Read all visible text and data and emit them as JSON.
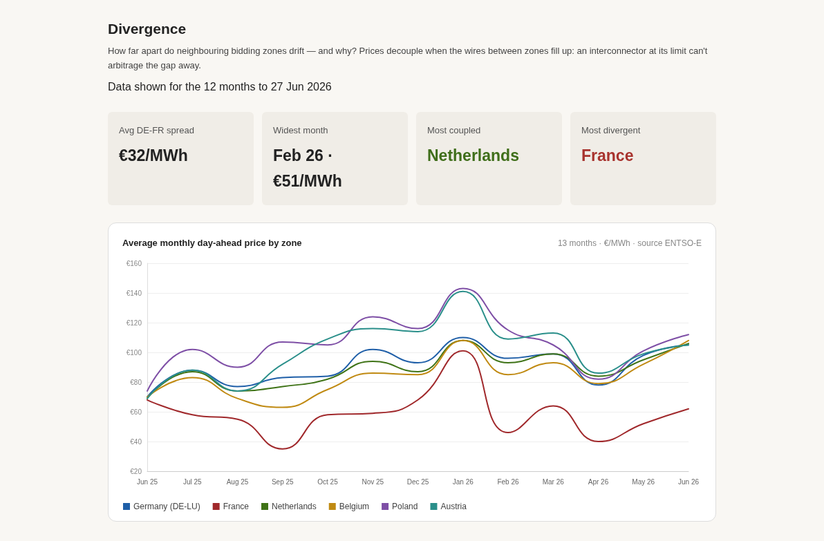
{
  "chart_data": {
    "type": "line",
    "title": "Average monthly day-ahead price by zone",
    "subtitle": "13 months · €/MWh · source ENTSO-E",
    "annotations": [
      "Divergence",
      "How far apart do neighbouring bidding zones drift — and why? Prices decouple when the wires between zones fill up: an interconnector at its limit can't arbitrage the gap away.",
      "Data shown for the 12 months to 27 Jun 2026",
      "Avg DE-FR spread",
      "€32/MWh",
      "Widest month",
      "Feb 26 · €51/MWh",
      "Most coupled",
      "Netherlands",
      "Most divergent",
      "France"
    ],
    "categories": [
      "Jun 25",
      "Jul 25",
      "Aug 25",
      "Sep 25",
      "Oct 25",
      "Nov 25",
      "Dec 25",
      "Jan 26",
      "Feb 26",
      "Mar 26",
      "Apr 26",
      "May 26",
      "Jun 26"
    ],
    "series": [
      {
        "name": "Germany (DE-LU)",
        "color": "#1f5fa8",
        "values": [
          70,
          88,
          77,
          83,
          84,
          102,
          93,
          110,
          96,
          99,
          78,
          98,
          105
        ]
      },
      {
        "name": "France",
        "color": "#a0282b",
        "values": [
          68,
          58,
          55,
          35,
          58,
          59,
          68,
          101,
          46,
          64,
          40,
          52,
          62
        ]
      },
      {
        "name": "Netherlands",
        "color": "#3f7317",
        "values": [
          69,
          87,
          74,
          77,
          82,
          94,
          87,
          108,
          93,
          99,
          84,
          95,
          106
        ]
      },
      {
        "name": "Belgium",
        "color": "#c08a12",
        "values": [
          70,
          83,
          69,
          63,
          75,
          86,
          85,
          108,
          85,
          93,
          79,
          92,
          108
        ]
      },
      {
        "name": "Poland",
        "color": "#7e4fa6",
        "values": [
          74,
          102,
          90,
          107,
          105,
          124,
          116,
          143,
          115,
          105,
          82,
          101,
          112
        ]
      },
      {
        "name": "Austria",
        "color": "#2a8f8a",
        "values": [
          69,
          88,
          74,
          92,
          109,
          116,
          114,
          141,
          109,
          113,
          86,
          99,
          105
        ]
      }
    ],
    "ylim": [
      20,
      160
    ],
    "yticks": [
      {
        "value": 20,
        "label": "€20"
      },
      {
        "value": 40,
        "label": "€40"
      },
      {
        "value": 60,
        "label": "€60"
      },
      {
        "value": 80,
        "label": "€80"
      },
      {
        "value": 100,
        "label": "€100"
      },
      {
        "value": 120,
        "label": "€120"
      },
      {
        "value": 140,
        "label": "€140"
      },
      {
        "value": 160,
        "label": "€160"
      }
    ],
    "grid": "y",
    "legend": "bottom left",
    "marker": "none",
    "line_style": "solid"
  }
}
